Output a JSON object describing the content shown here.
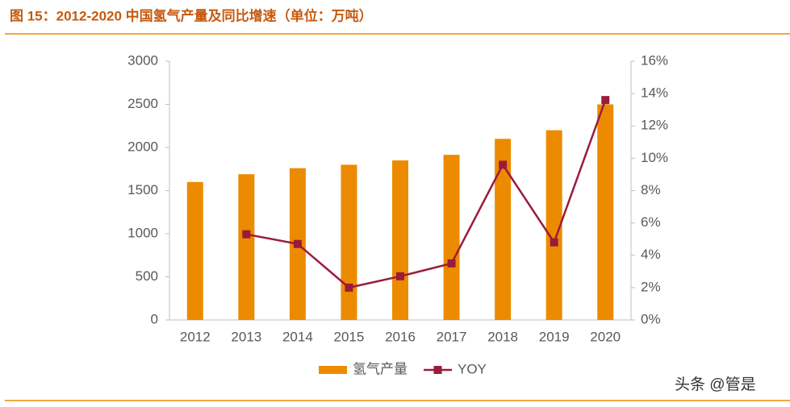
{
  "chart_data": {
    "type": "bar",
    "title": "图 15：2012-2020 中国氢气产量及同比增速（单位：万吨）",
    "categories": [
      "2012",
      "2013",
      "2014",
      "2015",
      "2016",
      "2017",
      "2018",
      "2019",
      "2020"
    ],
    "series": [
      {
        "name": "氢气产量",
        "color": "#ed8b00",
        "values": [
          1600,
          1690,
          1760,
          1800,
          1850,
          1915,
          2100,
          2200,
          2500
        ]
      },
      {
        "name": "YOY",
        "type": "line",
        "axis": "y2",
        "color": "#9b1b3a",
        "values": [
          null,
          5.3,
          4.7,
          2.0,
          2.7,
          3.5,
          9.6,
          4.8,
          13.6
        ]
      }
    ],
    "ylim": [
      0,
      3000
    ],
    "yticks": [
      0,
      500,
      1000,
      1500,
      2000,
      2500,
      3000
    ],
    "y2lim": [
      0,
      16
    ],
    "y2ticks": [
      {
        "value": 0,
        "label": "0%"
      },
      {
        "value": 2,
        "label": "2%"
      },
      {
        "value": 4,
        "label": "4%"
      },
      {
        "value": 6,
        "label": "6%"
      },
      {
        "value": 8,
        "label": "8%"
      },
      {
        "value": 10,
        "label": "10%"
      },
      {
        "value": 12,
        "label": "12%"
      },
      {
        "value": 14,
        "label": "14%"
      },
      {
        "value": 16,
        "label": "16%"
      }
    ],
    "grid": false,
    "legend": "bottom",
    "watermark": "头条 @管是"
  }
}
